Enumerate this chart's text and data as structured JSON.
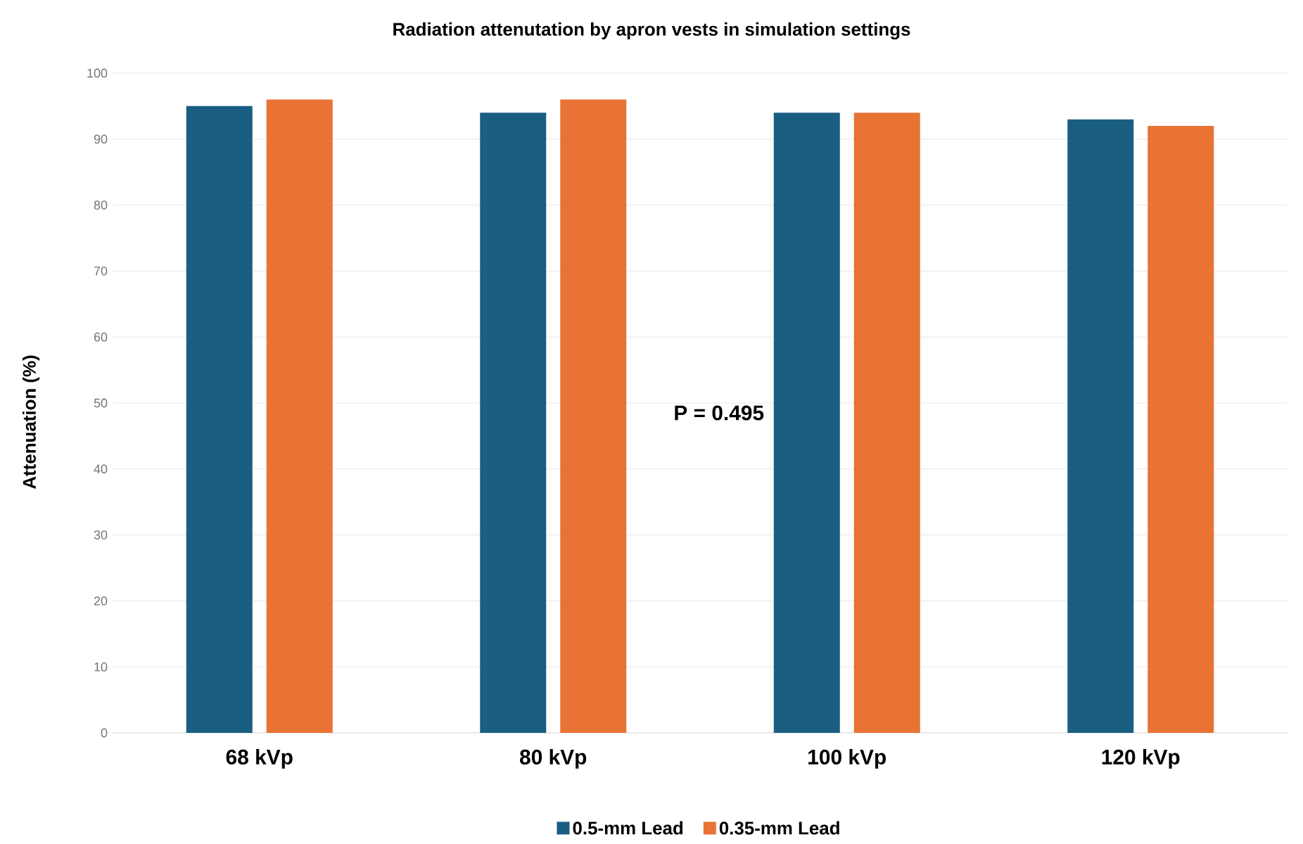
{
  "chart_data": {
    "type": "bar",
    "title": "Radiation attenutation by apron vests in simulation settings",
    "ylabel": "Attenuation (%)",
    "categories": [
      "68 kVp",
      "80 kVp",
      "100 kVp",
      "120 kVp"
    ],
    "series": [
      {
        "name": "0.5-mm Lead",
        "color": "#1a5e82",
        "values": [
          95,
          94,
          94,
          93
        ]
      },
      {
        "name": "0.35-mm Lead",
        "color": "#e87334",
        "values": [
          96,
          96,
          94,
          92
        ]
      }
    ],
    "ylim": [
      0,
      100
    ],
    "yticks": [
      0,
      10,
      20,
      30,
      40,
      50,
      60,
      70,
      80,
      90,
      100
    ],
    "grid": "y",
    "legend": "bottom",
    "annotations": [
      "P = 0.495"
    ]
  }
}
